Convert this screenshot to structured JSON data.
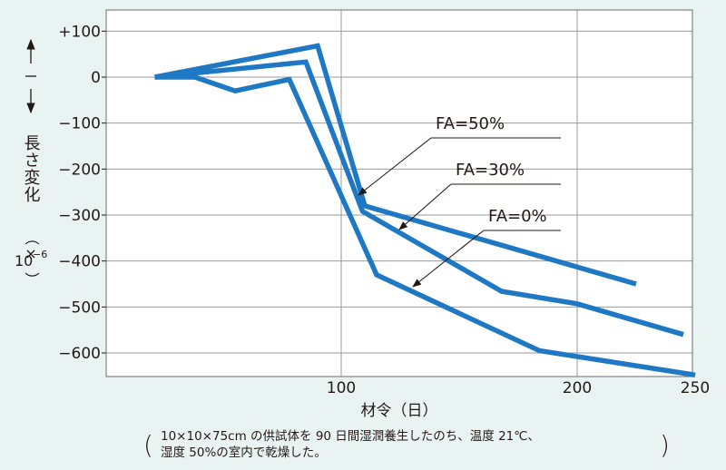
{
  "chart_data": {
    "type": "line",
    "title": "",
    "xlabel": "材令（日）",
    "ylabel": "長さ変化",
    "ylabel_unit_open": "（×",
    "ylabel_unit_base": "10",
    "ylabel_unit_exp": "−6",
    "ylabel_unit_close": "）",
    "xlim": [
      0,
      250
    ],
    "ylim": [
      -650,
      150
    ],
    "x_ticks": [
      {
        "value": 100,
        "label": "100"
      },
      {
        "value": 200,
        "label": "200"
      },
      {
        "value": 250,
        "label": "250"
      }
    ],
    "y_ticks": [
      {
        "value": 100,
        "label": "+100"
      },
      {
        "value": 0,
        "label": "0"
      },
      {
        "value": -100,
        "label": "−100"
      },
      {
        "value": -200,
        "label": "−200"
      },
      {
        "value": -300,
        "label": "−300"
      },
      {
        "value": -400,
        "label": "−400"
      },
      {
        "value": -500,
        "label": "−500"
      },
      {
        "value": -600,
        "label": "−600"
      }
    ],
    "grid": true,
    "line_color": "#1f78c3",
    "series": [
      {
        "name": "FA=50%",
        "x": [
          21,
          90,
          110,
          225
        ],
        "y": [
          0,
          68,
          -280,
          -450
        ]
      },
      {
        "name": "FA=30%",
        "x": [
          21,
          85,
          109,
          168,
          200,
          245
        ],
        "y": [
          0,
          33,
          -292,
          -466,
          -493,
          -560
        ]
      },
      {
        "name": "FA=0%",
        "x": [
          21,
          38,
          55,
          78,
          115,
          184,
          250
        ],
        "y": [
          0,
          0,
          -30,
          -5,
          -430,
          -595,
          -648
        ]
      }
    ],
    "annotations": [
      {
        "series": "FA=50%",
        "text": "FA=50%"
      },
      {
        "series": "FA=30%",
        "text": "FA=30%"
      },
      {
        "series": "FA=0%",
        "text": "FA=0%"
      }
    ]
  },
  "note": {
    "line1": "10×10×75cm の供試体を 90 日間湿潤養生したのち、温度 21℃、",
    "line2": "湿度 50%の室内で乾燥した。",
    "paren_open": "(",
    "paren_close": ")"
  }
}
